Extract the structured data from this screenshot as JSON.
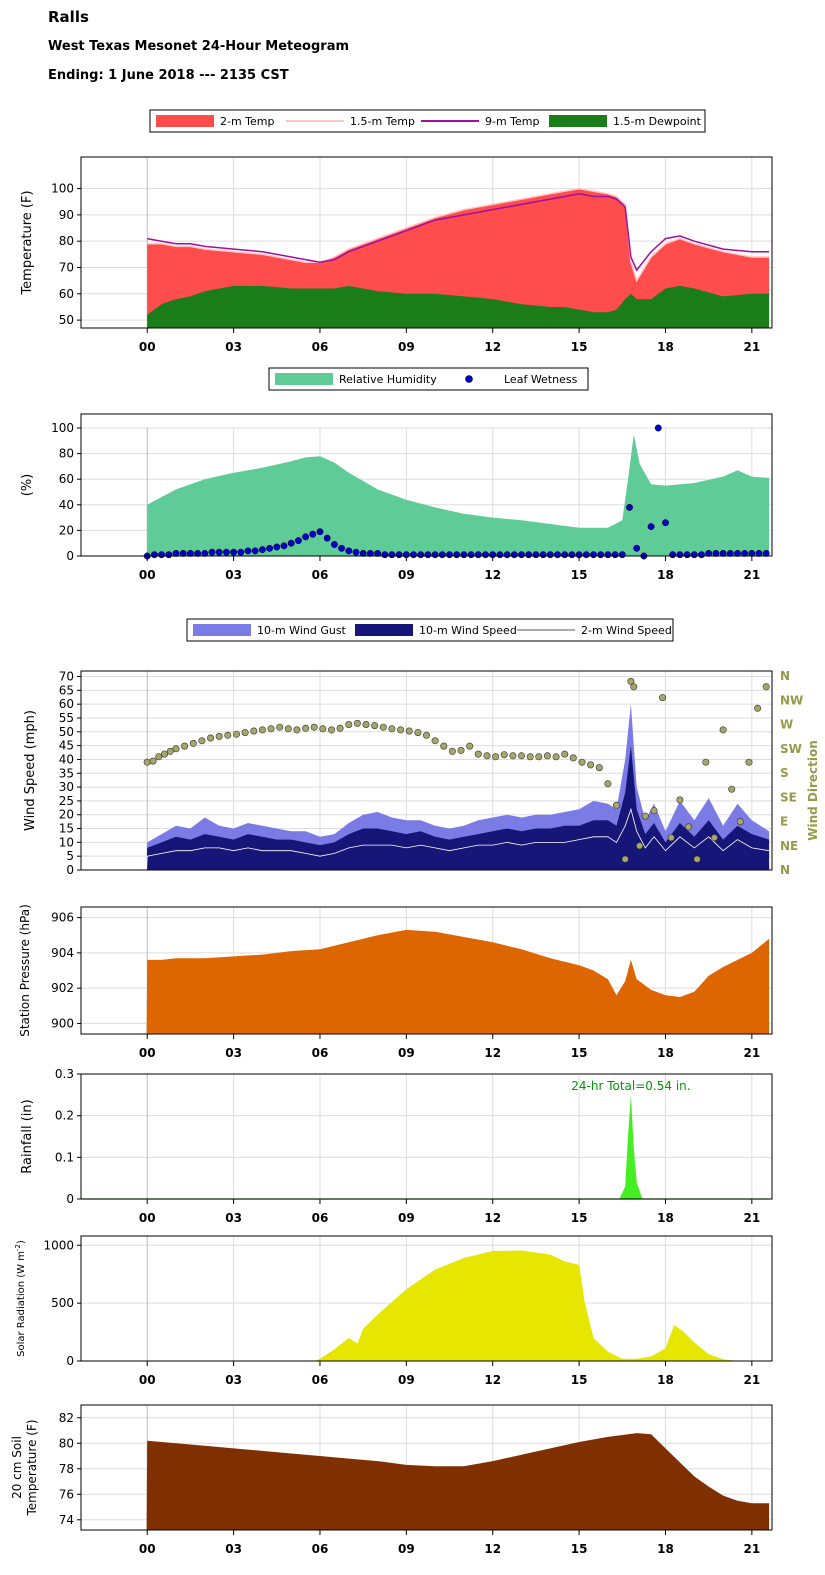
{
  "header": {
    "station": "Ralls",
    "subtitle": "West Texas Mesonet 24-Hour Meteogram",
    "ending": "Ending: 1 June 2018 --- 2135 CST"
  },
  "colors": {
    "temp2m": "#ff4c4c",
    "temp15m": "#ffc4c4",
    "temp9m": "#a010a0",
    "dewpoint": "#1a7d1a",
    "rh": "#5fcc97",
    "leaf": "#0000cc",
    "gust": "#7b7be6",
    "speed": "#161678",
    "speed2m": "#ffffff",
    "winddir": "#a6a66a",
    "pressure": "#dd6600",
    "rain": "#44ee22",
    "rain_label": "#009900",
    "solar": "#e6e600",
    "soil": "#803000",
    "dir_label": "#99994a"
  },
  "time_ticks": [
    "00",
    "03",
    "06",
    "09",
    "12",
    "15",
    "18",
    "21"
  ],
  "chart_data": [
    {
      "id": "temperature",
      "type": "area",
      "legend": [
        "2-m Temp",
        "1.5-m Temp",
        "9-m Temp",
        "1.5-m Dewpoint"
      ],
      "ylabel": "Temperature (F)",
      "ylim": [
        47,
        112
      ],
      "yticks": [
        50,
        60,
        70,
        80,
        90,
        100
      ],
      "x": [
        0,
        0.5,
        1,
        1.5,
        2,
        3,
        4,
        5,
        5.5,
        6,
        6.5,
        7,
        8,
        9,
        10,
        11,
        12,
        13,
        14,
        14.5,
        15,
        15.5,
        16,
        16.3,
        16.6,
        16.8,
        17,
        17.5,
        18,
        18.5,
        19,
        20,
        21,
        21.6
      ],
      "series": [
        {
          "name": "2-m Temp",
          "values": [
            79,
            79,
            78,
            78,
            77,
            76,
            75,
            73,
            72,
            72,
            74,
            77,
            81,
            85,
            89,
            92,
            94,
            96,
            98,
            99,
            100,
            99,
            98,
            97,
            94,
            72,
            65,
            74,
            79,
            81,
            79,
            76,
            74,
            74
          ]
        },
        {
          "name": "1.5-m Temp",
          "values": [
            79,
            79,
            78,
            78,
            77,
            76,
            75,
            73,
            72,
            72,
            74,
            77,
            81,
            85,
            89,
            92,
            94,
            96,
            98,
            99,
            100,
            99,
            98,
            97,
            94,
            72,
            65,
            74,
            79,
            81,
            79,
            76,
            74,
            74
          ]
        },
        {
          "name": "9-m Temp",
          "values": [
            81,
            80,
            79,
            79,
            78,
            77,
            76,
            74,
            73,
            72,
            73,
            76,
            80,
            84,
            88,
            90,
            92,
            94,
            96,
            97,
            98,
            97,
            97,
            96,
            93,
            74,
            69,
            76,
            81,
            82,
            80,
            77,
            76,
            76
          ]
        },
        {
          "name": "1.5-m Dewpoint",
          "values": [
            52,
            56,
            58,
            59,
            61,
            63,
            63,
            62,
            62,
            62,
            62,
            63,
            61,
            60,
            60,
            59,
            58,
            56,
            55,
            55,
            54,
            53,
            53,
            54,
            58,
            60,
            58,
            58,
            62,
            63,
            62,
            59,
            60,
            60
          ]
        }
      ]
    },
    {
      "id": "humidity",
      "type": "area",
      "legend": [
        "Relative Humidity",
        "Leaf Wetness"
      ],
      "ylabel": "(%)",
      "ylim": [
        0,
        100
      ],
      "yticks": [
        0,
        20,
        40,
        60,
        80,
        100
      ],
      "x": [
        0,
        0.5,
        1,
        2,
        3,
        4,
        5,
        5.5,
        6,
        6.5,
        7,
        8,
        9,
        10,
        11,
        12,
        13,
        14,
        15,
        16,
        16.5,
        16.7,
        16.9,
        17.1,
        17.5,
        18,
        19,
        20,
        20.5,
        21,
        21.6
      ],
      "series": [
        {
          "name": "Relative Humidity",
          "values": [
            40,
            46,
            52,
            60,
            65,
            69,
            74,
            77,
            78,
            73,
            65,
            52,
            44,
            38,
            33,
            30,
            28,
            25,
            22,
            22,
            28,
            60,
            95,
            72,
            56,
            55,
            57,
            62,
            67,
            62,
            61
          ]
        }
      ],
      "leaf_x": [
        0,
        0.25,
        0.5,
        0.75,
        1,
        1.25,
        1.5,
        1.75,
        2,
        2.25,
        2.5,
        2.75,
        3,
        3.25,
        3.5,
        3.75,
        4,
        4.25,
        4.5,
        4.75,
        5,
        5.25,
        5.5,
        5.75,
        6,
        6.25,
        6.5,
        6.75,
        7,
        7.25,
        7.5,
        7.75,
        8,
        8.25,
        8.5,
        8.75,
        9,
        9.25,
        9.5,
        9.75,
        10,
        10.25,
        10.5,
        10.75,
        11,
        11.25,
        11.5,
        11.75,
        12,
        12.25,
        12.5,
        12.75,
        13,
        13.25,
        13.5,
        13.75,
        14,
        14.25,
        14.5,
        14.75,
        15,
        15.25,
        15.5,
        15.75,
        16,
        16.25,
        16.5,
        16.75,
        17,
        17.25,
        17.5,
        17.75,
        18,
        18.25,
        18.5,
        18.75,
        19,
        19.25,
        19.5,
        19.75,
        20,
        20.25,
        20.5,
        20.75,
        21,
        21.25,
        21.5
      ],
      "leaf_values": [
        0,
        1,
        1,
        1,
        2,
        2,
        2,
        2,
        2,
        3,
        3,
        3,
        3,
        3,
        4,
        4,
        5,
        6,
        7,
        8,
        10,
        12,
        15,
        17,
        19,
        14,
        9,
        6,
        4,
        3,
        2,
        2,
        2,
        1,
        1,
        1,
        1,
        1,
        1,
        1,
        1,
        1,
        1,
        1,
        1,
        1,
        1,
        1,
        1,
        1,
        1,
        1,
        1,
        1,
        1,
        1,
        1,
        1,
        1,
        1,
        1,
        1,
        1,
        1,
        1,
        1,
        1,
        38,
        6,
        0,
        23,
        100,
        26,
        1,
        1,
        1,
        1,
        1,
        2,
        2,
        2,
        2,
        2,
        2,
        2,
        2,
        2,
        2,
        2
      ]
    },
    {
      "id": "wind",
      "type": "area",
      "legend": [
        "10-m Wind Gust",
        "10-m Wind Speed",
        "2-m Wind Speed"
      ],
      "ylabel": "Wind Speed (mph)",
      "y2label": "Wind Direction",
      "ylim": [
        0,
        72
      ],
      "yticks": [
        0,
        5,
        10,
        15,
        20,
        25,
        30,
        35,
        40,
        45,
        50,
        55,
        60,
        65,
        70
      ],
      "dir_labels": [
        "N",
        "NE",
        "E",
        "SE",
        "S",
        "SW",
        "W",
        "NW",
        "N"
      ],
      "x": [
        -2.3,
        -0.02,
        0,
        0.5,
        1,
        1.5,
        2,
        2.5,
        3,
        3.5,
        4,
        4.5,
        5,
        5.5,
        6,
        6.5,
        7,
        7.5,
        8,
        8.5,
        9,
        9.5,
        10,
        10.5,
        11,
        11.5,
        12,
        12.5,
        13,
        13.5,
        14,
        14.5,
        15,
        15.5,
        16,
        16.3,
        16.6,
        16.8,
        17,
        17.3,
        17.6,
        18,
        18.5,
        19,
        19.5,
        20,
        20.5,
        21,
        21.6
      ],
      "series": [
        {
          "name": "10-m Wind Gust",
          "values": [
            0,
            0,
            10,
            13,
            16,
            15,
            19,
            16,
            15,
            17,
            16,
            15,
            14,
            14,
            12,
            13,
            17,
            20,
            21,
            19,
            18,
            18,
            16,
            15,
            16,
            18,
            19,
            20,
            19,
            20,
            20,
            21,
            22,
            25,
            24,
            22,
            40,
            60,
            30,
            18,
            24,
            14,
            25,
            18,
            26,
            16,
            24,
            18,
            14
          ]
        },
        {
          "name": "10-m Wind Speed",
          "values": [
            0,
            0,
            8,
            10,
            12,
            11,
            13,
            12,
            11,
            13,
            12,
            11,
            11,
            10,
            9,
            10,
            13,
            15,
            15,
            14,
            13,
            14,
            12,
            11,
            12,
            13,
            14,
            15,
            14,
            15,
            15,
            16,
            16,
            18,
            18,
            16,
            28,
            45,
            22,
            13,
            17,
            10,
            17,
            12,
            18,
            11,
            16,
            13,
            11
          ]
        },
        {
          "name": "2-m Wind Speed",
          "values": [
            0,
            0,
            5,
            6,
            7,
            7,
            8,
            8,
            7,
            8,
            7,
            7,
            7,
            6,
            5,
            6,
            8,
            9,
            9,
            9,
            8,
            9,
            8,
            7,
            8,
            9,
            9,
            10,
            9,
            10,
            10,
            10,
            11,
            12,
            12,
            10,
            16,
            22,
            14,
            8,
            12,
            7,
            12,
            8,
            12,
            7,
            11,
            8,
            7
          ]
        }
      ],
      "direction_x": [
        0,
        0.2,
        0.4,
        0.6,
        0.8,
        1,
        1.3,
        1.6,
        1.9,
        2.2,
        2.5,
        2.8,
        3.1,
        3.4,
        3.7,
        4,
        4.3,
        4.6,
        4.9,
        5.2,
        5.5,
        5.8,
        6.1,
        6.4,
        6.7,
        7,
        7.3,
        7.6,
        7.9,
        8.2,
        8.5,
        8.8,
        9.1,
        9.4,
        9.7,
        10,
        10.3,
        10.6,
        10.9,
        11.2,
        11.5,
        11.8,
        12.1,
        12.4,
        12.7,
        13,
        13.3,
        13.6,
        13.9,
        14.2,
        14.5,
        14.8,
        15.1,
        15.4,
        15.7,
        16,
        16.3,
        16.6,
        16.8,
        16.9,
        17.1,
        17.3,
        17.6,
        17.9,
        18.2,
        18.5,
        18.8,
        19.1,
        19.4,
        19.7,
        20,
        20.3,
        20.6,
        20.9,
        21.2,
        21.5
      ],
      "direction_values": [
        200,
        202,
        210,
        215,
        220,
        225,
        230,
        235,
        240,
        245,
        248,
        250,
        252,
        255,
        258,
        260,
        262,
        265,
        262,
        260,
        263,
        265,
        262,
        260,
        263,
        270,
        272,
        270,
        268,
        265,
        262,
        260,
        258,
        255,
        250,
        240,
        230,
        220,
        222,
        230,
        215,
        212,
        210,
        214,
        212,
        212,
        210,
        210,
        212,
        210,
        215,
        208,
        200,
        195,
        190,
        160,
        120,
        20,
        350,
        340,
        45,
        100,
        110,
        320,
        60,
        130,
        80,
        20,
        200,
        60,
        260,
        150,
        90,
        200,
        300,
        340
      ]
    },
    {
      "id": "pressure",
      "type": "area",
      "ylabel": "Station Pressure (hPa)",
      "ylim": [
        899.4,
        906.6
      ],
      "yticks": [
        900,
        902,
        904,
        906
      ],
      "x": [
        -2.3,
        -0.02,
        0,
        0.5,
        1,
        2,
        3,
        4,
        5,
        6,
        7,
        8,
        9,
        10,
        11,
        12,
        13,
        14,
        15,
        15.5,
        16,
        16.3,
        16.6,
        16.8,
        17,
        17.5,
        18,
        18.5,
        19,
        19.5,
        20,
        21,
        21.6
      ],
      "series": [
        {
          "name": "Station Pressure",
          "values": [
            899.4,
            899.4,
            903.6,
            903.6,
            903.7,
            903.7,
            903.8,
            903.9,
            904.1,
            904.2,
            904.6,
            905.0,
            905.3,
            905.2,
            904.9,
            904.6,
            904.2,
            903.7,
            903.3,
            903.0,
            902.5,
            901.6,
            902.4,
            903.6,
            902.5,
            901.9,
            901.6,
            901.5,
            901.8,
            902.7,
            903.2,
            904.0,
            904.8
          ]
        }
      ]
    },
    {
      "id": "rainfall",
      "type": "area",
      "ylabel": "Rainfall (in)",
      "annotation": "24-hr Total=0.54 in.",
      "ylim": [
        0,
        0.3
      ],
      "yticks": [
        0,
        0.1,
        0.2,
        0.3
      ],
      "ytick_labels": [
        "0",
        "0.1",
        "0.2",
        "0.3"
      ],
      "x": [
        -2.3,
        16.4,
        16.6,
        16.7,
        16.8,
        16.9,
        17.0,
        17.2,
        21.6
      ],
      "series": [
        {
          "name": "Rainfall",
          "values": [
            0,
            0,
            0.03,
            0.15,
            0.25,
            0.12,
            0.04,
            0,
            0
          ]
        }
      ]
    },
    {
      "id": "solar",
      "type": "area",
      "ylabel": "Solar Radiation (W m-2)",
      "ylim": [
        0,
        1080
      ],
      "yticks": [
        0,
        500,
        1000
      ],
      "x": [
        -2.3,
        5.8,
        6,
        6.5,
        7,
        7.3,
        7.5,
        8,
        9,
        10,
        11,
        12,
        13,
        14,
        14.5,
        15,
        15.2,
        15.5,
        16,
        16.5,
        17,
        17.5,
        18,
        18.3,
        18.6,
        19,
        19.5,
        20,
        20.5,
        21.6
      ],
      "series": [
        {
          "name": "Solar Radiation",
          "values": [
            0,
            0,
            20,
            100,
            200,
            150,
            280,
            400,
            620,
            790,
            890,
            950,
            955,
            920,
            860,
            830,
            500,
            200,
            80,
            20,
            20,
            40,
            110,
            310,
            260,
            160,
            60,
            15,
            0,
            0
          ]
        }
      ]
    },
    {
      "id": "soil",
      "type": "area",
      "ylabel": "20 cm Soil Temperature (F)",
      "ylim": [
        73.2,
        83
      ],
      "yticks": [
        74,
        76,
        78,
        80,
        82
      ],
      "x": [
        -2.3,
        -0.02,
        0,
        1,
        2,
        3,
        4,
        5,
        6,
        7,
        8,
        9,
        10,
        11,
        12,
        13,
        14,
        15,
        16,
        17,
        17.5,
        18,
        18.5,
        19,
        19.5,
        20,
        20.5,
        21,
        21.6
      ],
      "series": [
        {
          "name": "20 cm Soil Temperature",
          "values": [
            73.2,
            73.2,
            80.2,
            80.0,
            79.8,
            79.6,
            79.4,
            79.2,
            79.0,
            78.8,
            78.6,
            78.3,
            78.2,
            78.2,
            78.6,
            79.1,
            79.6,
            80.1,
            80.5,
            80.8,
            80.7,
            79.6,
            78.5,
            77.4,
            76.6,
            75.9,
            75.5,
            75.3,
            75.3
          ]
        }
      ]
    }
  ]
}
